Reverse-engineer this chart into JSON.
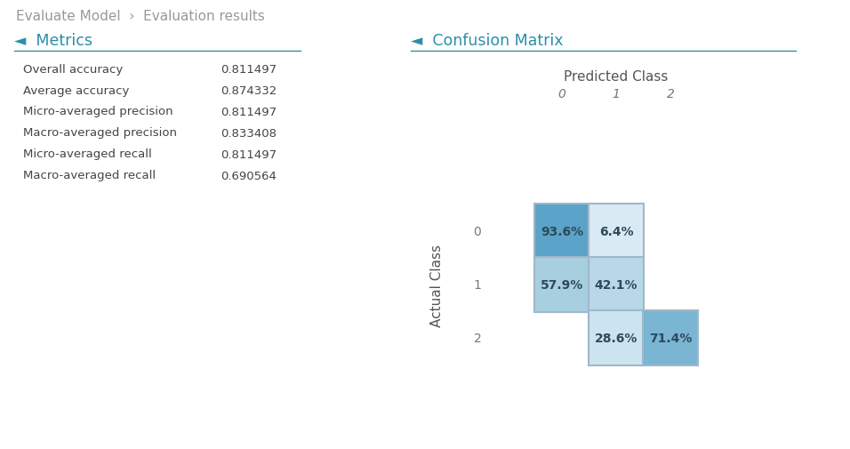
{
  "bg_color": "#ffffff",
  "header_text": "Evaluate Model  ›  Evaluation results",
  "header_color": "#999999",
  "metrics_title": "◄  Metrics",
  "metrics_title_color": "#2a8fa8",
  "metrics_line_color": "#2a8fa8",
  "metrics": [
    [
      "Overall accuracy",
      "0.811497"
    ],
    [
      "Average accuracy",
      "0.874332"
    ],
    [
      "Micro-averaged precision",
      "0.811497"
    ],
    [
      "Macro-averaged precision",
      "0.833408"
    ],
    [
      "Micro-averaged recall",
      "0.811497"
    ],
    [
      "Macro-averaged recall",
      "0.690564"
    ]
  ],
  "metrics_label_color": "#444444",
  "metrics_value_color": "#444444",
  "cm_title": "◄  Confusion Matrix",
  "cm_title_color": "#2a8fa8",
  "cm_line_color": "#2a8fa8",
  "predicted_label": "Predicted Class",
  "actual_label": "Actual Class",
  "class_labels": [
    "0",
    "1",
    "2"
  ],
  "cm_values": [
    [
      "93.6%",
      "6.4%",
      null
    ],
    [
      "57.9%",
      "42.1%",
      null
    ],
    [
      null,
      "28.6%",
      "71.4%"
    ]
  ],
  "cm_colors": [
    [
      "#5ba3c9",
      "#daeaf4",
      null
    ],
    [
      "#a8cfe0",
      "#b8d8e8",
      null
    ],
    [
      null,
      "#cce4f0",
      "#7ab5d4"
    ]
  ],
  "cm_border_color": "#a0b8c8",
  "cell_text_color": "#2d4a5a",
  "cell_size": 62
}
